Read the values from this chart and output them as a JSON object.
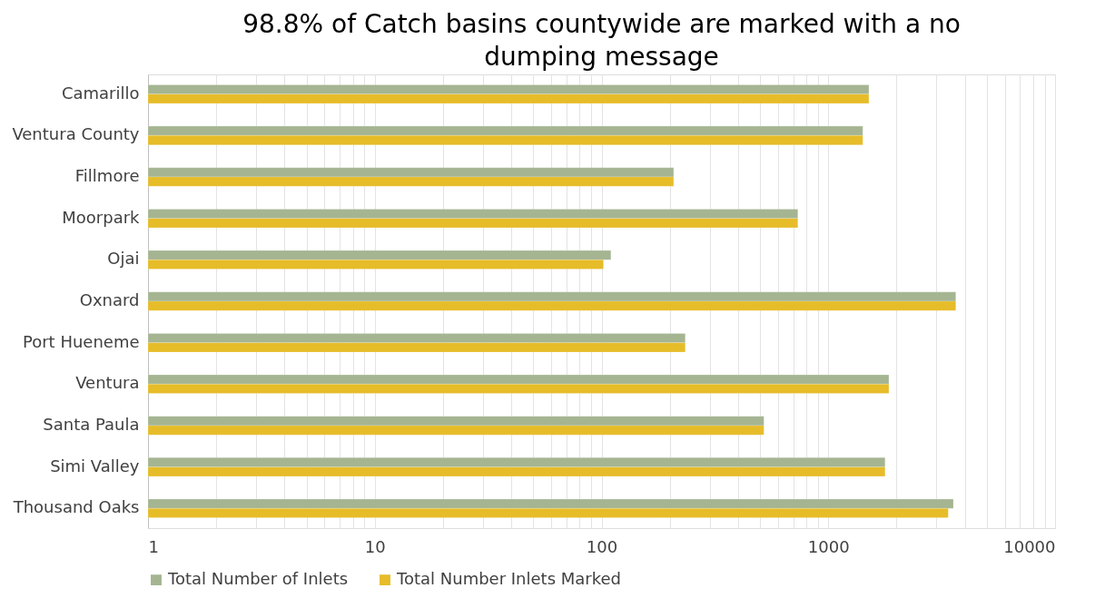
{
  "chart_data": {
    "type": "bar",
    "orientation": "horizontal",
    "log": "x",
    "title": "98.8% of Catch basins countywide are marked with a no dumping message",
    "categories": [
      "Camarillo",
      "Ventura County",
      "Fillmore",
      "Moorpark",
      "Ojai",
      "Oxnard",
      "Port Hueneme",
      "Ventura",
      "Santa Paula",
      "Simi Valley",
      "Thousand Oaks"
    ],
    "series": [
      {
        "name": "Total Number of Inlets",
        "color": "#a5b592",
        "values": [
          1510,
          1420,
          208,
          734,
          110,
          3650,
          234,
          1850,
          520,
          1780,
          3560
        ]
      },
      {
        "name": "Total Number Inlets Marked",
        "color": "#e6bc29",
        "values": [
          1510,
          1420,
          208,
          734,
          102,
          3650,
          234,
          1850,
          520,
          1780,
          3380
        ]
      }
    ],
    "xlim": [
      1,
      10000
    ],
    "xticks": [
      1,
      {
        "value": 2,
        "label": null
      },
      {
        "value": 3,
        "label": null
      },
      {
        "value": 4,
        "label": null
      },
      {
        "value": 5,
        "label": null
      },
      {
        "value": 6,
        "label": null
      },
      {
        "value": 7,
        "label": null
      },
      {
        "value": 8,
        "label": null
      },
      {
        "value": 9,
        "label": null
      },
      10,
      {
        "value": 20,
        "label": null
      },
      {
        "value": 30,
        "label": null
      },
      {
        "value": 40,
        "label": null
      },
      {
        "value": 50,
        "label": null
      },
      {
        "value": 60,
        "label": null
      },
      {
        "value": 70,
        "label": null
      },
      {
        "value": 80,
        "label": null
      },
      {
        "value": 90,
        "label": null
      },
      100,
      {
        "value": 200,
        "label": null
      },
      {
        "value": 300,
        "label": null
      },
      {
        "value": 400,
        "label": null
      },
      {
        "value": 500,
        "label": null
      },
      {
        "value": 600,
        "label": null
      },
      {
        "value": 700,
        "label": null
      },
      {
        "value": 800,
        "label": null
      },
      {
        "value": 900,
        "label": null
      },
      1000,
      {
        "value": 2000,
        "label": null
      },
      {
        "value": 3000,
        "label": null
      },
      {
        "value": 4000,
        "label": null
      },
      {
        "value": 5000,
        "label": null
      },
      {
        "value": 6000,
        "label": null
      },
      {
        "value": 7000,
        "label": null
      },
      {
        "value": 8000,
        "label": null
      },
      {
        "value": 9000,
        "label": null
      },
      10000
    ],
    "grid": "x",
    "legend": "bottom"
  }
}
